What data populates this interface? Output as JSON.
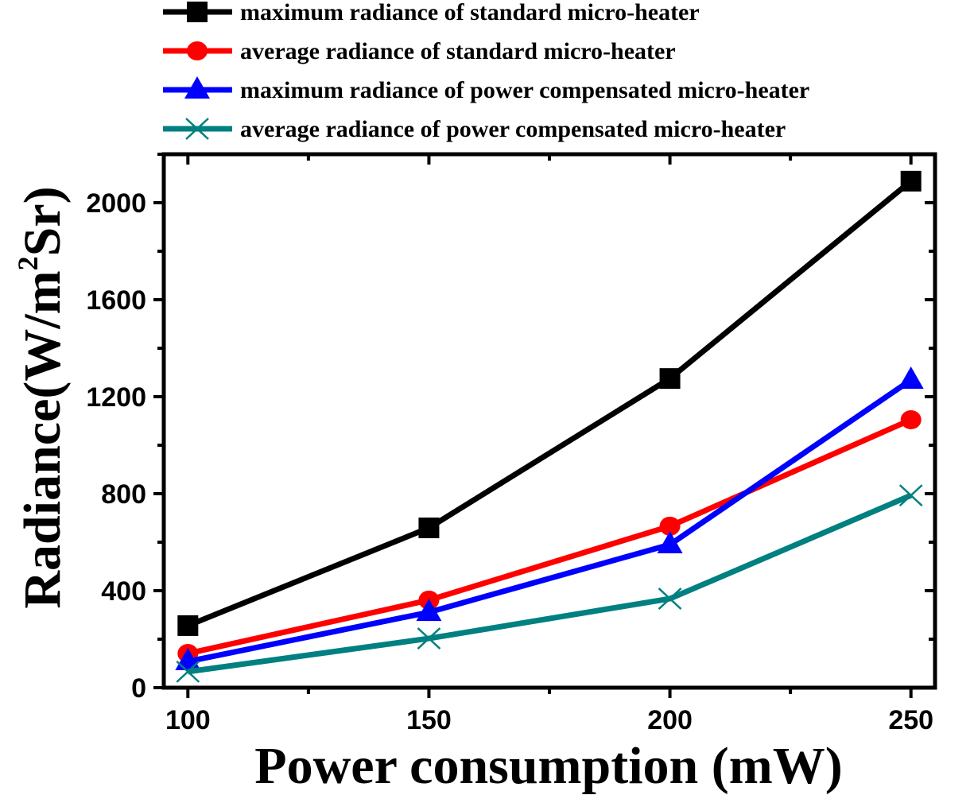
{
  "chart_data": {
    "type": "line",
    "title": "",
    "xlabel": "Power consumption (mW)",
    "ylabel_main": "Radiance(W/m",
    "ylabel_sup": "2",
    "ylabel_end": "Sr)",
    "ylabel": "Radiance(W/m^2Sr)",
    "xlim": [
      95,
      255
    ],
    "ylim": [
      0,
      2200
    ],
    "x_ticks": [
      100,
      150,
      200,
      250
    ],
    "x_tick_labels": [
      "100",
      "150",
      "200",
      "250"
    ],
    "y_ticks": [
      0,
      400,
      800,
      1200,
      1600,
      2000
    ],
    "y_tick_labels": [
      "0",
      "400",
      "800",
      "1200",
      "1600",
      "2000"
    ],
    "grid": false,
    "legend_position": "top",
    "x": [
      100,
      150,
      200,
      250
    ],
    "series": [
      {
        "name": "maximum radiance of standard micro-heater",
        "color": "#000000",
        "marker": "square",
        "values": [
          256,
          659,
          1275,
          2089
        ]
      },
      {
        "name": "average radiance of standard micro-heater",
        "color": "#ff0000",
        "marker": "circle",
        "values": [
          141,
          361,
          666,
          1105
        ]
      },
      {
        "name": "maximum radiance of power compensated micro-heater",
        "color": "#0000ff",
        "marker": "triangle",
        "values": [
          108,
          311,
          590,
          1269
        ]
      },
      {
        "name": "average radiance of power compensated micro-heater",
        "color": "#008080",
        "marker": "x",
        "values": [
          66,
          203,
          367,
          793
        ]
      }
    ]
  }
}
